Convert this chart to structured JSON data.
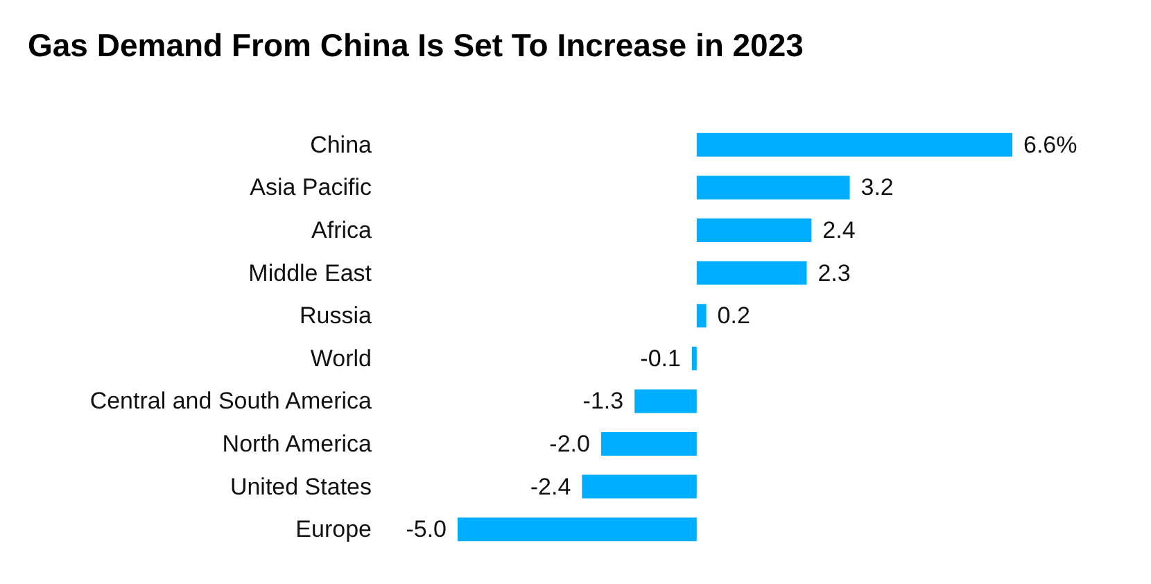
{
  "chart_data": {
    "type": "bar",
    "orientation": "horizontal",
    "title": "Gas Demand From China Is Set To Increase in 2023",
    "categories": [
      "China",
      "Asia Pacific",
      "Africa",
      "Middle East",
      "Russia",
      "World",
      "Central and South America",
      "North America",
      "United States",
      "Europe"
    ],
    "values": [
      6.6,
      3.2,
      2.4,
      2.3,
      0.2,
      -0.1,
      -1.3,
      -2.0,
      -2.4,
      -5.0
    ],
    "value_labels": [
      "6.6%",
      "3.2",
      "2.4",
      "2.3",
      "0.2",
      "-0.1",
      "-1.3",
      "-2.0",
      "-2.4",
      "-5.0"
    ],
    "color": "#00aeff",
    "tick_labels": false
  }
}
